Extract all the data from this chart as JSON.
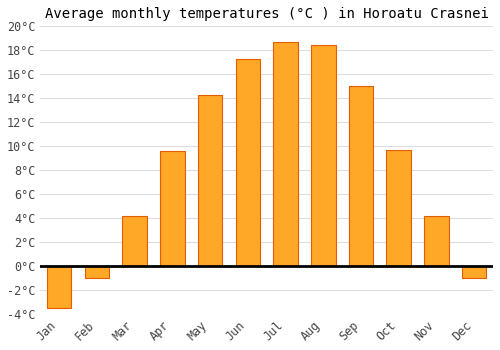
{
  "title": "Average monthly temperatures (°C ) in Horoatu Crasnei",
  "months": [
    "Jan",
    "Feb",
    "Mar",
    "Apr",
    "May",
    "Jun",
    "Jul",
    "Aug",
    "Sep",
    "Oct",
    "Nov",
    "Dec"
  ],
  "values": [
    -3.5,
    -1.0,
    4.2,
    9.6,
    14.3,
    17.3,
    18.7,
    18.4,
    15.0,
    9.7,
    4.2,
    -1.0
  ],
  "bar_color": "#FFA726",
  "bar_edge_color": "#E65C00",
  "background_color": "#FFFFFF",
  "grid_color": "#DDDDDD",
  "ylim": [
    -4,
    20
  ],
  "ytick_step": 2,
  "zero_line_color": "#000000",
  "title_fontsize": 10,
  "tick_fontsize": 8.5
}
